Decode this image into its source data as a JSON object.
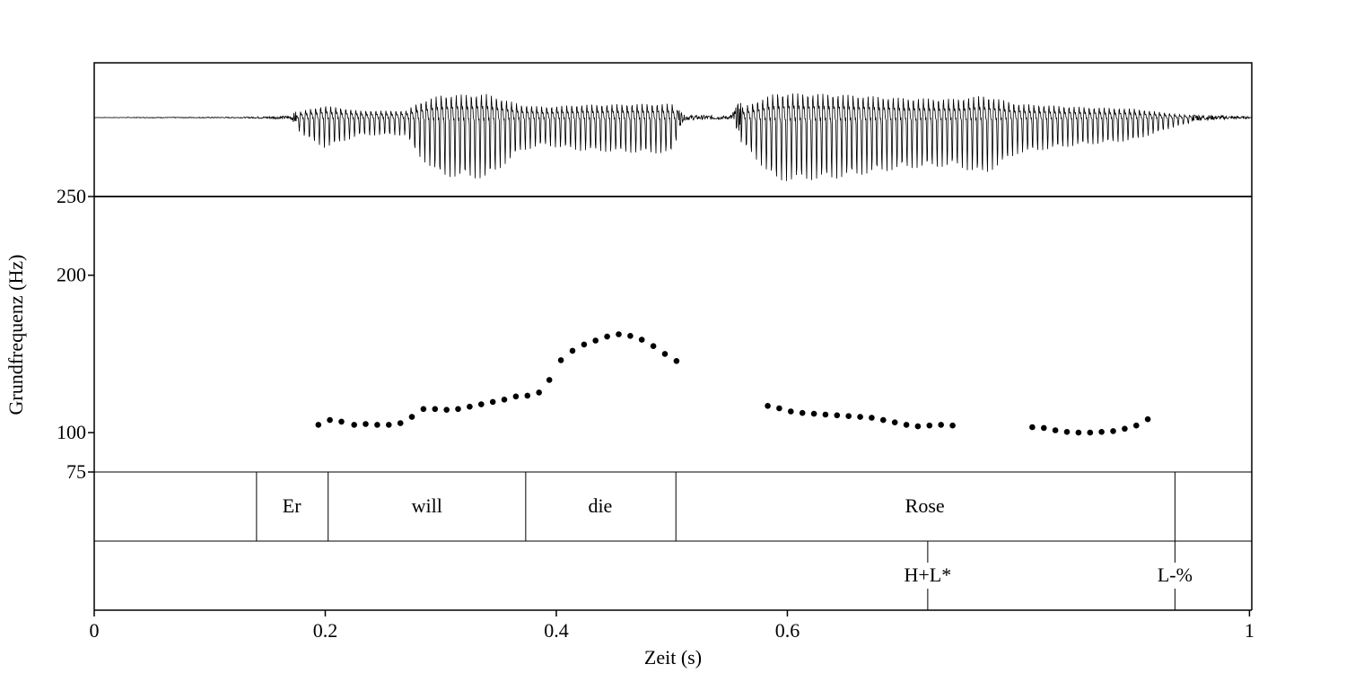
{
  "chart_data": {
    "type": "scatter",
    "xlabel": "Zeit (s)",
    "ylabel": "Grundfrequenz (Hz)",
    "xlim": [
      0,
      1.002
    ],
    "ylim": [
      75,
      250
    ],
    "x_ticks": [
      {
        "value": 0,
        "label": "0"
      },
      {
        "value": 0.2,
        "label": "0.2"
      },
      {
        "value": 0.4,
        "label": "0.4"
      },
      {
        "value": 0.6,
        "label": "0.6"
      },
      {
        "value": 1.0,
        "label": "1"
      }
    ],
    "y_ticks": [
      {
        "value": 250,
        "label": "250"
      },
      {
        "value": 200,
        "label": "200"
      },
      {
        "value": 100,
        "label": "100"
      },
      {
        "value": 75,
        "label": "75"
      }
    ],
    "series": [
      {
        "x": [
          0.194,
          0.204,
          0.214,
          0.225,
          0.235,
          0.245,
          0.255,
          0.265,
          0.275,
          0.285,
          0.295,
          0.305,
          0.315,
          0.325,
          0.335,
          0.345,
          0.355,
          0.365,
          0.375,
          0.385,
          0.394,
          0.404,
          0.414,
          0.424,
          0.434,
          0.444,
          0.454,
          0.464,
          0.474,
          0.484,
          0.494,
          0.504,
          0.583,
          0.593,
          0.603,
          0.613,
          0.623,
          0.633,
          0.643,
          0.653,
          0.663,
          0.673,
          0.683,
          0.693,
          0.703,
          0.713,
          0.723,
          0.733,
          0.743,
          0.812,
          0.822,
          0.832,
          0.842,
          0.852,
          0.862,
          0.872,
          0.882,
          0.892,
          0.902,
          0.912
        ],
        "y": [
          105,
          108,
          107,
          105,
          105.5,
          105,
          105,
          106,
          110,
          115,
          115,
          114.5,
          115,
          116.5,
          118,
          119.5,
          121,
          123,
          123.5,
          125.5,
          133.5,
          146,
          152,
          156,
          158.5,
          161,
          162.5,
          161.5,
          159,
          155,
          150,
          145.5,
          117,
          115.5,
          113.5,
          112.5,
          112,
          111.5,
          111,
          110.5,
          110,
          109.5,
          108,
          106.5,
          105,
          104,
          104.5,
          105,
          104.5,
          103.5,
          103,
          101.5,
          100.5,
          100,
          100,
          100.5,
          101,
          102.5,
          104.5,
          108.5
        ]
      }
    ],
    "tiers": {
      "words": {
        "boundaries": [
          0.1405,
          0.2025,
          0.3735,
          0.5035,
          0.9355
        ],
        "labels": [
          {
            "text": "Er",
            "t": 0.171
          },
          {
            "text": "will",
            "t": 0.288
          },
          {
            "text": "die",
            "t": 0.438
          },
          {
            "text": "Rose",
            "t": 0.719
          }
        ]
      },
      "tones": {
        "points": [
          {
            "text": "H+L*",
            "t": 0.7215
          },
          {
            "text": "L-%",
            "t": 0.9355
          }
        ]
      }
    }
  }
}
